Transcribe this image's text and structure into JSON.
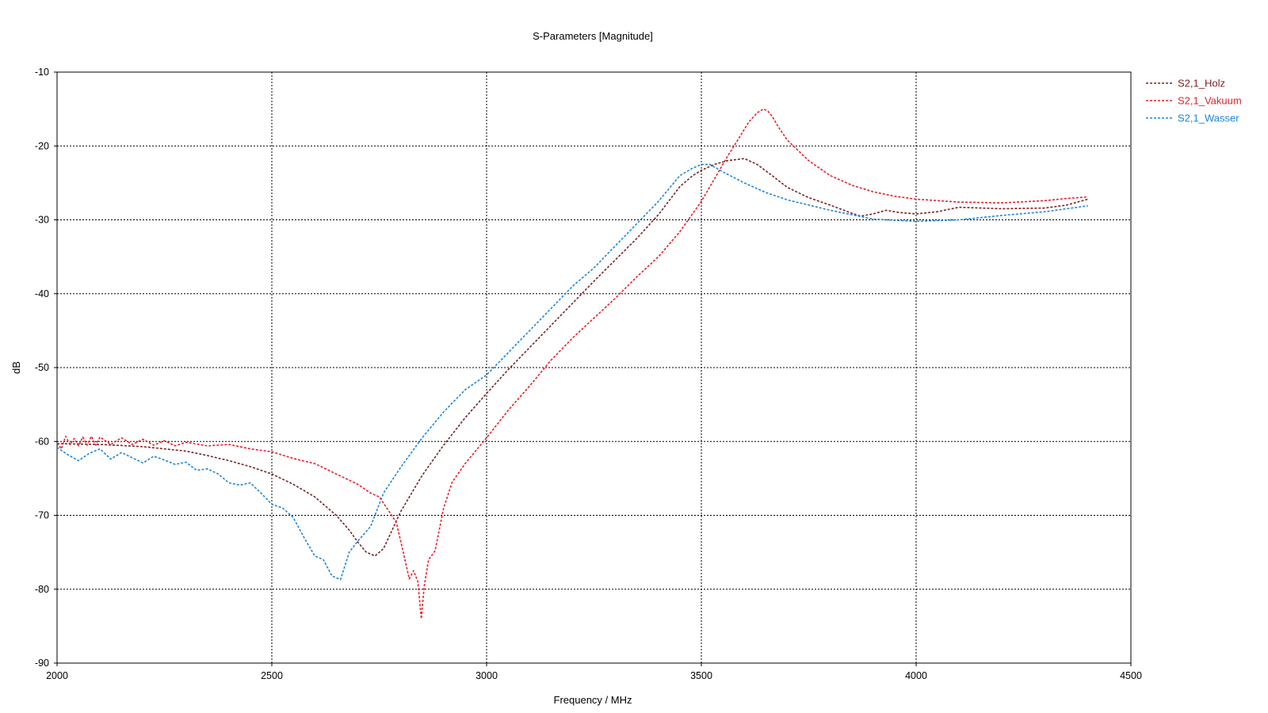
{
  "chart_data": {
    "type": "line",
    "title": "S-Parameters [Magnitude]",
    "xlabel": "Frequency / MHz",
    "ylabel": "dB",
    "xlim": [
      2000,
      4500
    ],
    "ylim": [
      -90,
      -10
    ],
    "xticks": [
      "2000",
      "2500",
      "3000",
      "3500",
      "4000",
      "4500"
    ],
    "yticks": [
      "-10",
      "-20",
      "-30",
      "-40",
      "-50",
      "-60",
      "-70",
      "-80",
      "-90"
    ],
    "grid": true,
    "legend_position": "right",
    "series": [
      {
        "name": "S2,1_Holz",
        "color": "#7a2424",
        "x": [
          2000,
          2100,
          2200,
          2300,
          2350,
          2400,
          2450,
          2500,
          2550,
          2600,
          2650,
          2680,
          2700,
          2720,
          2740,
          2760,
          2780,
          2800,
          2850,
          2900,
          2950,
          3000,
          3050,
          3100,
          3150,
          3200,
          3250,
          3300,
          3350,
          3400,
          3450,
          3480,
          3500,
          3530,
          3560,
          3600,
          3630,
          3660,
          3700,
          3750,
          3800,
          3850,
          3870,
          3900,
          3930,
          3960,
          4000,
          4050,
          4100,
          4150,
          4200,
          4300,
          4350,
          4400
        ],
        "y": [
          -60.3,
          -60.4,
          -60.7,
          -61.3,
          -61.9,
          -62.6,
          -63.4,
          -64.4,
          -65.8,
          -67.5,
          -70.0,
          -72.0,
          -73.6,
          -75.0,
          -75.5,
          -74.5,
          -72.0,
          -69.5,
          -64.6,
          -60.5,
          -56.8,
          -53.5,
          -50.3,
          -47.3,
          -44.3,
          -41.3,
          -38.3,
          -35.4,
          -32.5,
          -29.3,
          -25.5,
          -24.0,
          -23.3,
          -22.5,
          -22.0,
          -21.7,
          -22.5,
          -23.8,
          -25.6,
          -27.0,
          -28.0,
          -29.1,
          -29.5,
          -29.2,
          -28.7,
          -29.0,
          -29.2,
          -28.9,
          -28.3,
          -28.4,
          -28.5,
          -28.4,
          -28.0,
          -27.2
        ]
      },
      {
        "name": "S2,1_Vakuum",
        "color": "#e8202a",
        "x": [
          2000,
          2010,
          2020,
          2030,
          2040,
          2050,
          2060,
          2070,
          2080,
          2090,
          2100,
          2125,
          2150,
          2175,
          2200,
          2225,
          2250,
          2275,
          2300,
          2350,
          2400,
          2450,
          2500,
          2550,
          2600,
          2650,
          2700,
          2730,
          2750,
          2770,
          2790,
          2810,
          2820,
          2830,
          2840,
          2848,
          2855,
          2865,
          2880,
          2900,
          2920,
          2950,
          3000,
          3050,
          3100,
          3150,
          3200,
          3250,
          3300,
          3350,
          3400,
          3450,
          3500,
          3530,
          3560,
          3590,
          3610,
          3630,
          3645,
          3655,
          3665,
          3680,
          3700,
          3750,
          3800,
          3850,
          3900,
          3950,
          4000,
          4100,
          4200,
          4300,
          4350,
          4400
        ],
        "y": [
          -60.2,
          -61.0,
          -59.3,
          -60.4,
          -59.6,
          -60.6,
          -59.4,
          -60.5,
          -59.3,
          -60.5,
          -59.4,
          -60.4,
          -59.5,
          -60.4,
          -59.7,
          -60.5,
          -59.9,
          -60.6,
          -60.1,
          -60.6,
          -60.4,
          -61.0,
          -61.4,
          -62.3,
          -63.0,
          -64.4,
          -65.8,
          -67.0,
          -67.5,
          -69.2,
          -71.0,
          -76.0,
          -78.6,
          -77.5,
          -79.0,
          -84.0,
          -79.5,
          -76.0,
          -74.8,
          -69.0,
          -65.5,
          -63.0,
          -59.5,
          -55.8,
          -52.5,
          -49.0,
          -46.0,
          -43.3,
          -40.6,
          -37.7,
          -35.0,
          -31.6,
          -27.5,
          -24.5,
          -21.5,
          -18.7,
          -16.8,
          -15.5,
          -15.0,
          -15.3,
          -16.0,
          -17.5,
          -19.2,
          -22.0,
          -24.0,
          -25.3,
          -26.2,
          -26.8,
          -27.2,
          -27.6,
          -27.7,
          -27.4,
          -27.1,
          -26.9
        ]
      },
      {
        "name": "S2,1_Wasser",
        "color": "#1f86d6",
        "x": [
          2000,
          2025,
          2050,
          2075,
          2100,
          2125,
          2150,
          2175,
          2200,
          2225,
          2250,
          2275,
          2300,
          2325,
          2350,
          2375,
          2400,
          2425,
          2450,
          2475,
          2500,
          2525,
          2550,
          2575,
          2600,
          2620,
          2640,
          2660,
          2680,
          2700,
          2730,
          2760,
          2800,
          2850,
          2900,
          2950,
          3000,
          3050,
          3100,
          3150,
          3200,
          3250,
          3300,
          3350,
          3400,
          3450,
          3480,
          3500,
          3520,
          3550,
          3600,
          3650,
          3700,
          3800,
          3900,
          4000,
          4100,
          4200,
          4300,
          4400
        ],
        "y": [
          -60.8,
          -61.8,
          -62.6,
          -61.6,
          -61.0,
          -62.4,
          -61.5,
          -62.2,
          -62.9,
          -62.0,
          -62.5,
          -63.1,
          -62.8,
          -63.9,
          -63.7,
          -64.4,
          -65.6,
          -65.9,
          -65.6,
          -67.0,
          -68.5,
          -69.0,
          -70.3,
          -73.0,
          -75.5,
          -76.0,
          -78.2,
          -78.7,
          -75.0,
          -73.5,
          -71.5,
          -67.0,
          -63.5,
          -59.5,
          -56.0,
          -53.0,
          -51.0,
          -48.0,
          -45.0,
          -42.0,
          -39.0,
          -36.5,
          -33.5,
          -30.5,
          -27.5,
          -24.0,
          -23.0,
          -22.5,
          -22.5,
          -23.5,
          -25.0,
          -26.3,
          -27.3,
          -28.7,
          -29.9,
          -30.2,
          -30.0,
          -29.4,
          -28.9,
          -28.1
        ]
      }
    ]
  }
}
